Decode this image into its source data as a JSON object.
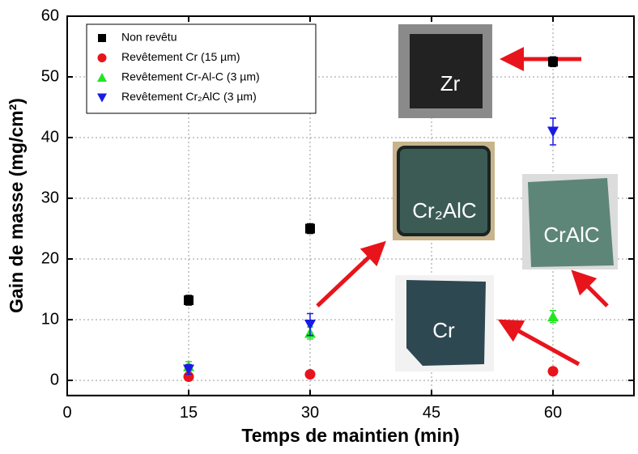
{
  "chart_data": {
    "type": "scatter",
    "x_label": "Temps de maintien (min)",
    "y_label": "Gain de masse (mg/cm²)",
    "x": [
      15,
      30,
      60
    ],
    "xlim": [
      0,
      70
    ],
    "xticks": [
      0,
      15,
      30,
      45,
      60
    ],
    "ylim": [
      -2.5,
      60
    ],
    "yticks": [
      0,
      10,
      20,
      30,
      40,
      50,
      60
    ],
    "grid": true,
    "legend": "top-left",
    "series": [
      {
        "name": "Non revêtu",
        "color": "#000000",
        "marker": "square",
        "values": [
          13.2,
          25,
          52.5
        ],
        "errors": [
          0.8,
          0.8,
          0.8
        ]
      },
      {
        "name": "Revêtement Cr (15 µm)",
        "color": "#e8141c",
        "marker": "circle",
        "values": [
          0.6,
          1.0,
          1.5
        ],
        "errors": [
          0.2,
          0.2,
          0.2
        ]
      },
      {
        "name": "Revêtement Cr-Al-C (3 µm)",
        "color": "#22e622",
        "marker": "triangle-up",
        "values": [
          2.3,
          7.8,
          10.5
        ],
        "errors": [
          0.8,
          1.0,
          1.0
        ]
      },
      {
        "name": "Revêtement Cr₂AlC (3 µm)",
        "color": "#1a1ae6",
        "marker": "triangle-down",
        "values": [
          1.8,
          9.2,
          41
        ],
        "errors": [
          0.8,
          1.8,
          2.2
        ]
      }
    ],
    "annotations": [
      "Zr",
      "Cr₂AlC",
      "CrAlC",
      "Cr"
    ]
  }
}
